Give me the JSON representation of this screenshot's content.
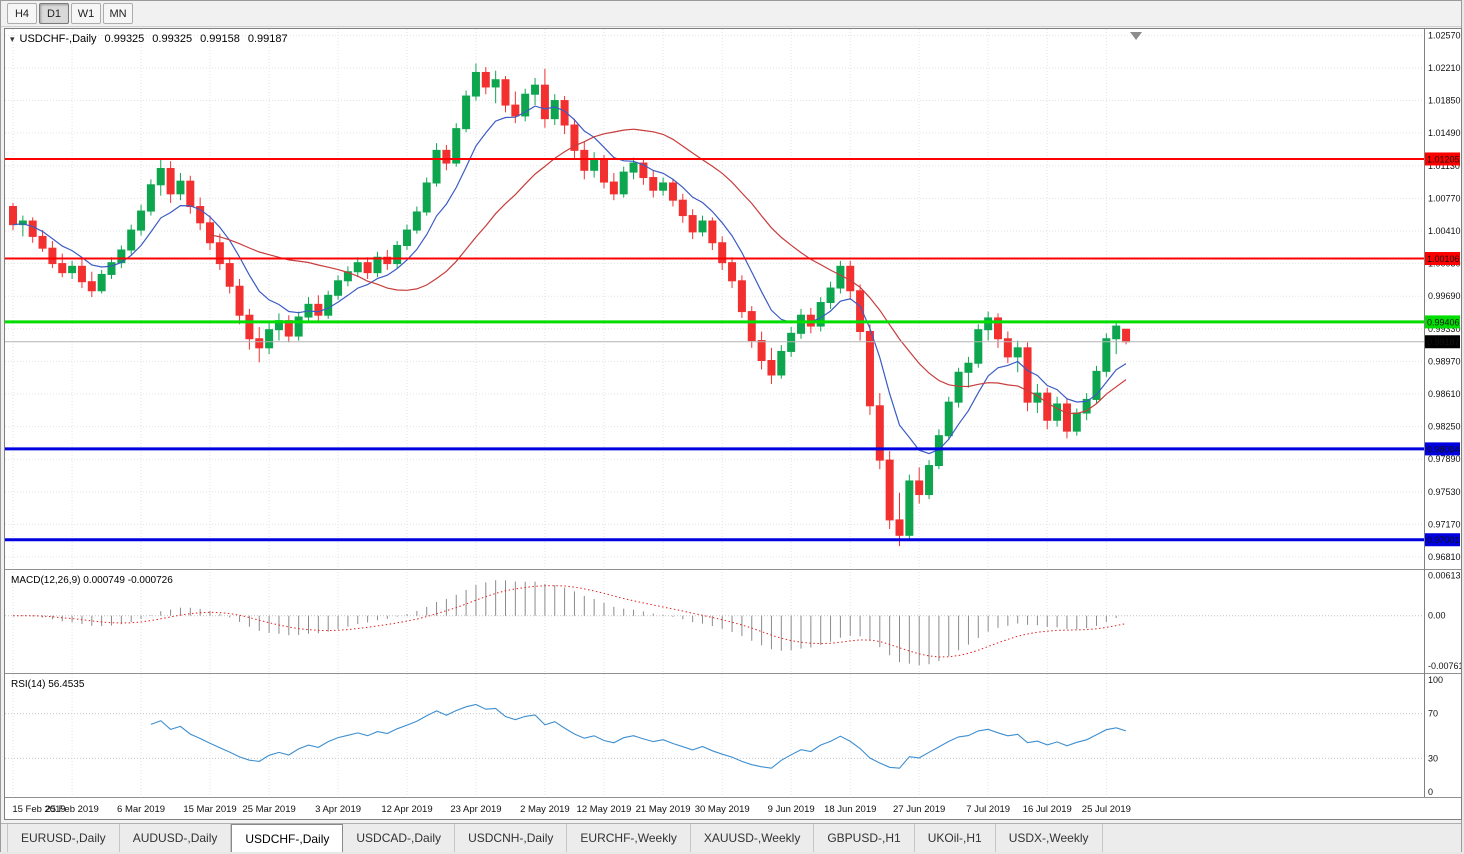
{
  "toolbar": {
    "timeframes": [
      {
        "label": "H4",
        "active": false
      },
      {
        "label": "D1",
        "active": true
      },
      {
        "label": "W1",
        "active": false
      },
      {
        "label": "MN",
        "active": false
      }
    ]
  },
  "header": {
    "expander_icon": "▾",
    "symbol_title": "USDCHF-,Daily",
    "open": "0.99325",
    "high": "0.99325",
    "low": "0.99158",
    "close": "0.99187"
  },
  "chart_data": {
    "type": "candlestick",
    "symbol": "USDCHF-",
    "timeframe": "Daily",
    "candle_up_color": "#0da64f",
    "candle_down_color": "#f23030",
    "price_axis_labels": [
      "1.02570",
      "1.02210",
      "1.01850",
      "1.01490",
      "1.01130",
      "1.00770",
      "1.00410",
      "1.00050",
      "0.99690",
      "0.99330",
      "0.98970",
      "0.98610",
      "0.98250",
      "0.97890",
      "0.97530",
      "0.97170",
      "0.96810"
    ],
    "date_labels": [
      {
        "text": "15 Feb 2019",
        "index": 0
      },
      {
        "text": "25 Feb 2019",
        "index": 6
      },
      {
        "text": "6 Mar 2019",
        "index": 13
      },
      {
        "text": "15 Mar 2019",
        "index": 20
      },
      {
        "text": "25 Mar 2019",
        "index": 26
      },
      {
        "text": "3 Apr 2019",
        "index": 33
      },
      {
        "text": "12 Apr 2019",
        "index": 40
      },
      {
        "text": "23 Apr 2019",
        "index": 47
      },
      {
        "text": "2 May 2019",
        "index": 54
      },
      {
        "text": "12 May 2019",
        "index": 60
      },
      {
        "text": "21 May 2019",
        "index": 66
      },
      {
        "text": "30 May 2019",
        "index": 72
      },
      {
        "text": "9 Jun 2019",
        "index": 79
      },
      {
        "text": "18 Jun 2019",
        "index": 85
      },
      {
        "text": "27 Jun 2019",
        "index": 92
      },
      {
        "text": "7 Jul 2019",
        "index": 99
      },
      {
        "text": "16 Jul 2019",
        "index": 105
      },
      {
        "text": "25 Jul 2019",
        "index": 111
      }
    ],
    "moving_averages": [
      {
        "period": 8,
        "method": "ema",
        "color": "#3b5bc4"
      },
      {
        "period": 21,
        "method": "sma",
        "color": "#c83c3c"
      }
    ],
    "horizontal_lines": [
      {
        "value": 1.01205,
        "label": "1.01205",
        "color": "#ff0000",
        "width": 2,
        "text_color": "#ffffff"
      },
      {
        "value": 1.00106,
        "label": "1.00106",
        "color": "#ff0000",
        "width": 2,
        "text_color": "#ffffff"
      },
      {
        "value": 0.99406,
        "label": "0.99406",
        "color": "#00dd00",
        "width": 3,
        "text_color": "#000000"
      },
      {
        "value": 0.98004,
        "label": "0.98004",
        "color": "#0000e0",
        "width": 3,
        "text_color": "#ffffff"
      },
      {
        "value": 0.97001,
        "label": "0.97001",
        "color": "#0000e0",
        "width": 3,
        "text_color": "#ffffff"
      }
    ],
    "current_price": {
      "value": 0.99187,
      "label": "0.99187",
      "badge_color": "#000000"
    },
    "macd": {
      "title": "MACD(12,26,9) 0.000749 -0.000726",
      "fast": 12,
      "slow": 26,
      "signal": 9,
      "value": "0.000749",
      "signal_value": "-0.000726",
      "axis_labels": [
        "0.00613",
        "0.00",
        "-0.00761"
      ],
      "histogram_color": "#8a8a8a",
      "signal_color": "#e02020"
    },
    "rsi": {
      "title": "RSI(14) 56.4535",
      "period": 14,
      "value": "56.4535",
      "levels": [
        70,
        30
      ],
      "axis_labels": [
        "100",
        "70",
        "30",
        "0"
      ],
      "line_color": "#3e8fd0"
    },
    "candles": [
      [
        1.0068,
        1.0072,
        1.0042,
        1.0048
      ],
      [
        1.0048,
        1.0058,
        1.0035,
        1.0052
      ],
      [
        1.0052,
        1.0056,
        1.0028,
        1.0035
      ],
      [
        1.0035,
        1.0042,
        1.0018,
        1.0022
      ],
      [
        1.0022,
        1.003,
        1.0,
        1.0005
      ],
      [
        1.0005,
        1.0016,
        0.999,
        0.9995
      ],
      [
        0.9995,
        1.0008,
        0.9988,
        1.0002
      ],
      [
        1.0002,
        1.001,
        0.9978,
        0.9985
      ],
      [
        0.9985,
        0.9996,
        0.9968,
        0.9975
      ],
      [
        0.9975,
        0.9998,
        0.9972,
        0.9993
      ],
      [
        0.9993,
        1.0012,
        0.9988,
        1.0006
      ],
      [
        1.0006,
        1.0025,
        1.0,
        1.002
      ],
      [
        1.002,
        1.0048,
        1.0015,
        1.0042
      ],
      [
        1.0042,
        1.007,
        1.0036,
        1.0063
      ],
      [
        1.0063,
        1.0098,
        1.0058,
        1.0092
      ],
      [
        1.0092,
        1.0121,
        1.008,
        1.011
      ],
      [
        1.011,
        1.0118,
        1.0072,
        1.0082
      ],
      [
        1.0082,
        1.0105,
        1.0075,
        1.0096
      ],
      [
        1.0096,
        1.0102,
        1.006,
        1.0068
      ],
      [
        1.0068,
        1.0078,
        1.0042,
        1.005
      ],
      [
        1.005,
        1.0058,
        1.002,
        1.0028
      ],
      [
        1.0028,
        1.0038,
        0.9998,
        1.0005
      ],
      [
        1.0005,
        1.0012,
        0.9972,
        0.998
      ],
      [
        0.998,
        0.9988,
        0.9938,
        0.9948
      ],
      [
        0.9948,
        0.9955,
        0.991,
        0.9922
      ],
      [
        0.9922,
        0.9935,
        0.9896,
        0.9912
      ],
      [
        0.9912,
        0.994,
        0.9905,
        0.9932
      ],
      [
        0.9932,
        0.995,
        0.992,
        0.9942
      ],
      [
        0.9942,
        0.9948,
        0.9918,
        0.9925
      ],
      [
        0.9925,
        0.9952,
        0.992,
        0.9946
      ],
      [
        0.9946,
        0.9968,
        0.994,
        0.996
      ],
      [
        0.996,
        0.997,
        0.9942,
        0.9948
      ],
      [
        0.9948,
        0.9975,
        0.9944,
        0.997
      ],
      [
        0.997,
        0.9992,
        0.9965,
        0.9986
      ],
      [
        0.9986,
        1.0002,
        0.998,
        0.9996
      ],
      [
        0.9996,
        1.0012,
        0.999,
        1.0006
      ],
      [
        1.0006,
        1.0012,
        0.9988,
        0.9995
      ],
      [
        0.9995,
        1.0018,
        0.999,
        1.0012
      ],
      [
        1.0012,
        1.002,
        0.9998,
        1.0005
      ],
      [
        1.0005,
        1.003,
        1.0,
        1.0025
      ],
      [
        1.0025,
        1.0048,
        1.002,
        1.0042
      ],
      [
        1.0042,
        1.0068,
        1.0038,
        1.0062
      ],
      [
        1.0062,
        1.01,
        1.0058,
        1.0094
      ],
      [
        1.0094,
        1.0138,
        1.009,
        1.013
      ],
      [
        1.013,
        1.0136,
        1.0108,
        1.0116
      ],
      [
        1.0116,
        1.016,
        1.0112,
        1.0154
      ],
      [
        1.0154,
        1.0196,
        1.015,
        1.019
      ],
      [
        1.019,
        1.0226,
        1.0185,
        1.0216
      ],
      [
        1.0216,
        1.0222,
        1.0192,
        1.02
      ],
      [
        1.02,
        1.0218,
        1.0182,
        1.0208
      ],
      [
        1.0208,
        1.0212,
        1.0172,
        1.018
      ],
      [
        1.018,
        1.0195,
        1.016,
        1.0168
      ],
      [
        1.0168,
        1.0198,
        1.0162,
        1.0192
      ],
      [
        1.0192,
        1.021,
        1.018,
        1.0202
      ],
      [
        1.0202,
        1.022,
        1.0155,
        1.0165
      ],
      [
        1.0165,
        1.0192,
        1.0158,
        1.0185
      ],
      [
        1.0185,
        1.019,
        1.0148,
        1.0158
      ],
      [
        1.0158,
        1.0165,
        1.012,
        1.013
      ],
      [
        1.013,
        1.014,
        1.0098,
        1.0108
      ],
      [
        1.0108,
        1.0128,
        1.01,
        1.012
      ],
      [
        1.012,
        1.0125,
        1.0088,
        1.0095
      ],
      [
        1.0095,
        1.0105,
        1.0075,
        1.0082
      ],
      [
        1.0082,
        1.0112,
        1.0078,
        1.0106
      ],
      [
        1.0106,
        1.0122,
        1.0098,
        1.0116
      ],
      [
        1.0116,
        1.012,
        1.0092,
        1.01
      ],
      [
        1.01,
        1.0108,
        1.0078,
        1.0086
      ],
      [
        1.0086,
        1.01,
        1.008,
        1.0094
      ],
      [
        1.0094,
        1.0098,
        1.0068,
        1.0075
      ],
      [
        1.0075,
        1.0082,
        1.005,
        1.0058
      ],
      [
        1.0058,
        1.0065,
        1.0032,
        1.004
      ],
      [
        1.004,
        1.0058,
        1.0035,
        1.0052
      ],
      [
        1.0052,
        1.0056,
        1.002,
        1.0028
      ],
      [
        1.0028,
        1.0035,
        0.9998,
        1.0006
      ],
      [
        1.0006,
        1.0012,
        0.9978,
        0.9986
      ],
      [
        0.9986,
        0.9992,
        0.9945,
        0.9952
      ],
      [
        0.9952,
        0.9958,
        0.9912,
        0.992
      ],
      [
        0.992,
        0.993,
        0.9888,
        0.9898
      ],
      [
        0.9898,
        0.9912,
        0.9872,
        0.9882
      ],
      [
        0.9882,
        0.9915,
        0.9878,
        0.9908
      ],
      [
        0.9908,
        0.9935,
        0.9902,
        0.9928
      ],
      [
        0.9928,
        0.9955,
        0.9922,
        0.9948
      ],
      [
        0.9948,
        0.9956,
        0.9928,
        0.9936
      ],
      [
        0.9936,
        0.9968,
        0.993,
        0.9962
      ],
      [
        0.9962,
        0.9985,
        0.9955,
        0.9978
      ],
      [
        0.9978,
        1.0008,
        0.9972,
        1.0002
      ],
      [
        1.0002,
        1.0008,
        0.9965,
        0.9975
      ],
      [
        0.9975,
        0.9982,
        0.992,
        0.993
      ],
      [
        0.993,
        0.9938,
        0.9838,
        0.9848
      ],
      [
        0.9848,
        0.9862,
        0.9778,
        0.9788
      ],
      [
        0.9788,
        0.9798,
        0.9712,
        0.9722
      ],
      [
        0.9722,
        0.9752,
        0.9693,
        0.9705
      ],
      [
        0.9705,
        0.9772,
        0.97,
        0.9765
      ],
      [
        0.9765,
        0.978,
        0.974,
        0.975
      ],
      [
        0.975,
        0.9788,
        0.9745,
        0.9782
      ],
      [
        0.9782,
        0.9822,
        0.9778,
        0.9815
      ],
      [
        0.9815,
        0.9858,
        0.981,
        0.9852
      ],
      [
        0.9852,
        0.989,
        0.9846,
        0.9885
      ],
      [
        0.9885,
        0.9902,
        0.9868,
        0.9895
      ],
      [
        0.9895,
        0.9938,
        0.989,
        0.9932
      ],
      [
        0.9932,
        0.9952,
        0.992,
        0.9945
      ],
      [
        0.9945,
        0.995,
        0.9912,
        0.9922
      ],
      [
        0.9922,
        0.993,
        0.9895,
        0.9902
      ],
      [
        0.9902,
        0.992,
        0.9885,
        0.9912
      ],
      [
        0.9912,
        0.9918,
        0.9842,
        0.9852
      ],
      [
        0.9852,
        0.9872,
        0.984,
        0.9862
      ],
      [
        0.9862,
        0.9868,
        0.9822,
        0.9832
      ],
      [
        0.9832,
        0.9858,
        0.9825,
        0.985
      ],
      [
        0.985,
        0.9856,
        0.9812,
        0.982
      ],
      [
        0.982,
        0.9845,
        0.9815,
        0.984
      ],
      [
        0.984,
        0.9862,
        0.9832,
        0.9855
      ],
      [
        0.9855,
        0.9892,
        0.985,
        0.9886
      ],
      [
        0.9886,
        0.9928,
        0.988,
        0.9922
      ],
      [
        0.9922,
        0.9942,
        0.9905,
        0.9936
      ],
      [
        0.99325,
        0.99325,
        0.99158,
        0.99187
      ]
    ]
  },
  "tabs": [
    {
      "label": "EURUSD-,Daily",
      "active": false
    },
    {
      "label": "AUDUSD-,Daily",
      "active": false
    },
    {
      "label": "USDCHF-,Daily",
      "active": true
    },
    {
      "label": "USDCAD-,Daily",
      "active": false
    },
    {
      "label": "USDCNH-,Daily",
      "active": false
    },
    {
      "label": "EURCHF-,Weekly",
      "active": false
    },
    {
      "label": "XAUUSD-,Weekly",
      "active": false
    },
    {
      "label": "GBPUSD-,H1",
      "active": false
    },
    {
      "label": "UKOil-,H1",
      "active": false
    },
    {
      "label": "USDX-,Weekly",
      "active": false
    }
  ]
}
